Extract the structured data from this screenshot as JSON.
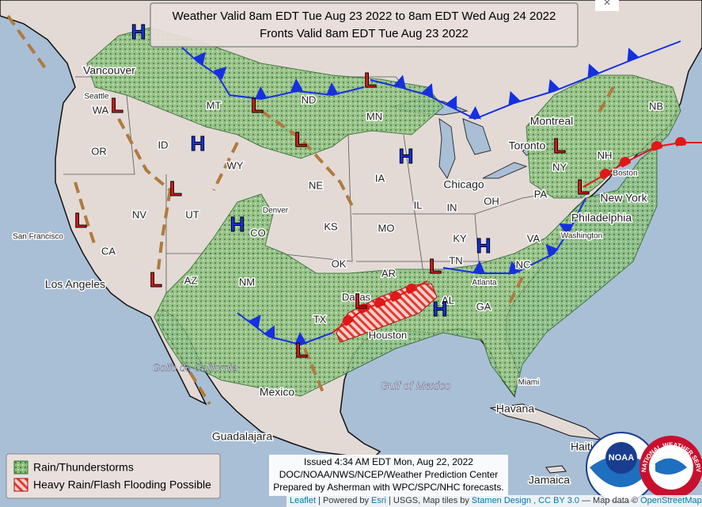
{
  "header": {
    "title_lines": [
      "Weather Valid 8am EDT Tue Aug 23 2022 to 8am EDT Wed Aug 24 2022",
      "Fronts Valid 8am EDT Tue Aug 23 2022"
    ]
  },
  "close_button": "×",
  "legend": [
    {
      "label": "Rain/Thunderstorms"
    },
    {
      "label": "Heavy Rain/Flash Flooding Possible"
    }
  ],
  "issued": [
    "Issued 4:34 AM EDT Mon, Aug 22, 2022",
    "DOC/NOAA/NWS/NCEP/Weather Prediction Center",
    "Prepared by Asherman with WPC/SPC/NHC forecasts."
  ],
  "attribution": [
    "Leaflet",
    "| Powered by",
    "Esri",
    "| USGS, Map tiles by",
    "Stamen Design",
    ", CC BY 3.0",
    "— Map data ©",
    "OpenStreetMap"
  ],
  "logos": [
    "NOAA",
    "NATIONAL WEATHER SERVICE"
  ],
  "pressure_centers": [
    "H",
    "H",
    "H",
    "H",
    "H",
    "H",
    "L",
    "L",
    "L",
    "L",
    "L",
    "L",
    "L",
    "L",
    "L",
    "L",
    "L",
    "L"
  ],
  "map_labels": [
    "Vancouver",
    "Seattle",
    "WA",
    "OR",
    "ID",
    "MT",
    "ND",
    "MN",
    "WY",
    "NE",
    "IA",
    "IL",
    "IN",
    "OH",
    "Chicago",
    "Toronto",
    "Montreal",
    "NB",
    "NH",
    "NY",
    "PA",
    "New York",
    "Philadelphia",
    "Boston",
    "Washington",
    "VA",
    "KY",
    "TN",
    "NC",
    "Atlanta",
    "GA",
    "AL",
    "AR",
    "OK",
    "KS",
    "MO",
    "CO",
    "Denver",
    "UT",
    "NV",
    "CA",
    "San Francisco",
    "Los Angeles",
    "AZ",
    "NM",
    "TX",
    "Dallas",
    "Houston",
    "Gulf of Mexico",
    "Golfo de California",
    "Mexico",
    "Guadalajara",
    "Havana",
    "Miami",
    "Jamaica",
    "Haiti"
  ]
}
